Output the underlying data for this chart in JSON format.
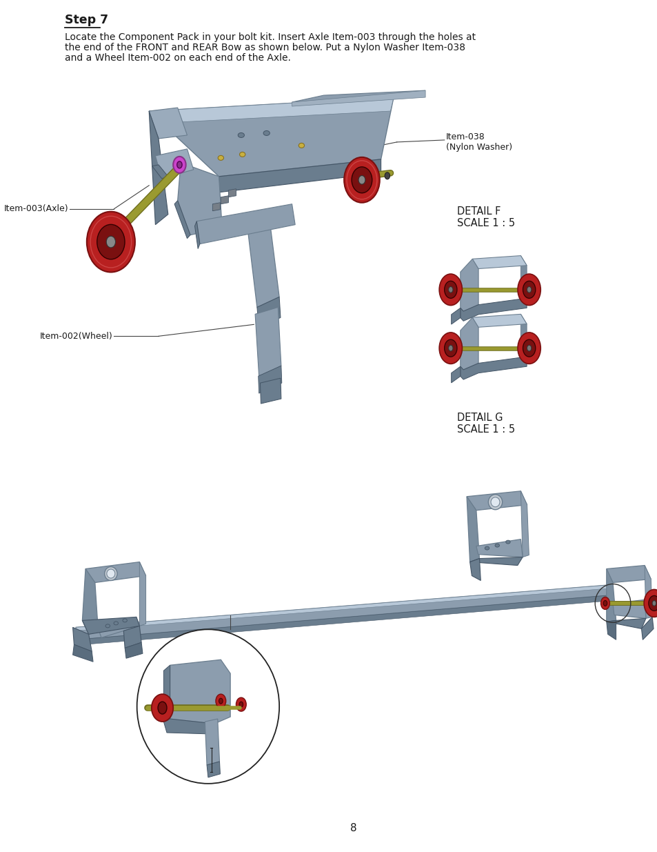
{
  "page_width": 9.54,
  "page_height": 12.35,
  "bg_color": "#ffffff",
  "step_title": "Step 7",
  "step_text_line1": "Locate the Component Pack in your bolt kit. Insert Axle Item-003 through the holes at",
  "step_text_line2": "the end of the FRONT and REAR Bow as shown below. Put a Nylon Washer Item-038",
  "step_text_line3": "and a Wheel Item-002 on each end of the Axle.",
  "detail_f_label": "DETAIL F",
  "detail_f_scale": "SCALE 1 : 5",
  "detail_g_label": "DETAIL G",
  "detail_g_scale": "SCALE 1 : 5",
  "page_number": "8",
  "label_item003": "Item-003(Axle)",
  "label_item002": "Item-002(Wheel)",
  "label_item038_line1": "Item-038",
  "label_item038_line2": "(Nylon Washer)",
  "sc": "#8c9dae",
  "sd": "#6a7d8e",
  "sl": "#b8c8d8",
  "sc2": "#7a8d9e",
  "wc": "#b82020",
  "wd": "#7a1010",
  "ac": "#9a9a30",
  "ad": "#707020",
  "wsc": "#cc44cc",
  "wsd": "#883388",
  "tc": "#1a1a1a",
  "lc": "#444444"
}
